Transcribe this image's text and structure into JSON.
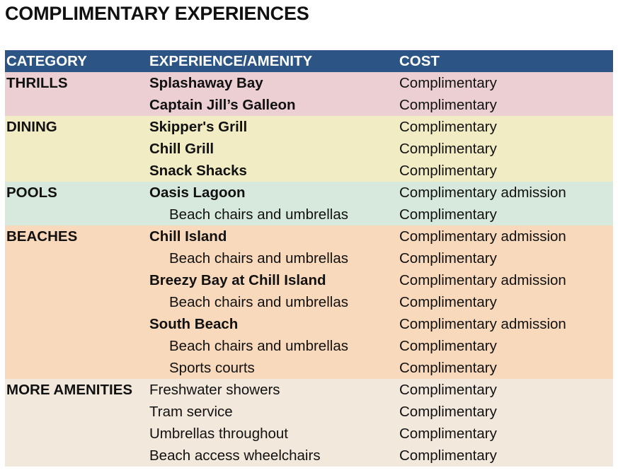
{
  "title": "COMPLIMENTARY EXPERIENCES",
  "table": {
    "headers": [
      "CATEGORY",
      "EXPERIENCE/AMENITY",
      "COST"
    ],
    "colors": {
      "header": "#2c5585",
      "thrills": "#ebcfd3",
      "dining": "#f1ecc4",
      "pools": "#d7e9dc",
      "beaches": "#f9d9bb",
      "more_amenities": "#f3e8dc"
    },
    "rows": [
      {
        "category": "THRILLS",
        "experience": "Splashaway Bay",
        "cost": "Complimentary"
      },
      {
        "category": "",
        "experience": "Captain Jill’s Galleon",
        "cost": "Complimentary"
      },
      {
        "category": "DINING",
        "experience": "Skipper's Grill",
        "cost": "Complimentary"
      },
      {
        "category": "",
        "experience": "Chill Grill",
        "cost": "Complimentary"
      },
      {
        "category": "",
        "experience": "Snack Shacks",
        "cost": "Complimentary"
      },
      {
        "category": "POOLS",
        "experience": "Oasis Lagoon",
        "cost": "Complimentary admission"
      },
      {
        "category": "",
        "experience": "Beach chairs and umbrellas",
        "cost": "Complimentary"
      },
      {
        "category": "BEACHES",
        "experience": "Chill Island",
        "cost": "Complimentary admission"
      },
      {
        "category": "",
        "experience": "Beach chairs and umbrellas",
        "cost": "Complimentary"
      },
      {
        "category": "",
        "experience": "Breezy Bay at Chill Island",
        "cost": "Complimentary admission"
      },
      {
        "category": "",
        "experience": "Beach chairs and umbrellas",
        "cost": "Complimentary"
      },
      {
        "category": "",
        "experience": "South Beach",
        "cost": "Complimentary admission"
      },
      {
        "category": "",
        "experience": "Beach chairs and umbrellas",
        "cost": "Complimentary"
      },
      {
        "category": "",
        "experience": "Sports courts",
        "cost": "Complimentary"
      },
      {
        "category": "MORE AMENITIES",
        "experience": "Freshwater showers",
        "cost": "Complimentary"
      },
      {
        "category": "",
        "experience": "Tram service",
        "cost": "Complimentary"
      },
      {
        "category": "",
        "experience": "Umbrellas throughout",
        "cost": "Complimentary"
      },
      {
        "category": "",
        "experience": "Beach access wheelchairs",
        "cost": "Complimentary"
      }
    ]
  }
}
